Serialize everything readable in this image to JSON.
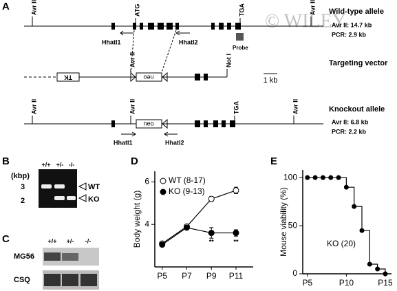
{
  "panel_labels": [
    "A",
    "B",
    "C",
    "D",
    "E"
  ],
  "watermark": "© WILEY",
  "gene_map": {
    "wild_type": {
      "title": "Wild-type allele",
      "avr": "Avr II: 14.7 kb",
      "pcr": "PCR: 2.9 kb",
      "sites": [
        "Avr II",
        "ATG",
        "TGA",
        "Avr II"
      ],
      "primers": [
        "HhatI1",
        "HhatI2"
      ],
      "probe": "Probe"
    },
    "targeting": {
      "title": "Targeting vector",
      "tk": "TK",
      "neo": "neo",
      "sites": [
        "Avr II",
        "Not I"
      ],
      "scale": "1 kb"
    },
    "knockout": {
      "title": "Knockout allele",
      "avr": "Avr II: 6.8 kb",
      "pcr": "PCR: 2.2 kb",
      "sites": [
        "Avr II",
        "Avr II",
        "TGA",
        "Avr II"
      ],
      "neo": "neo",
      "primers": [
        "HhatI1",
        "HhatI2"
      ]
    }
  },
  "genotype_gel": {
    "unit": "(kbp)",
    "lanes": [
      "+/+",
      "+/-",
      "-/-"
    ],
    "size_markers": [
      3,
      2
    ],
    "bands": [
      "WT",
      "KO"
    ]
  },
  "western_blot": {
    "lanes": [
      "+/+",
      "+/-",
      "-/-"
    ],
    "proteins": [
      "MG56",
      "CSQ"
    ]
  },
  "chart_data": [
    {
      "type": "line",
      "ylabel": "Body weight (g)",
      "categories": [
        "P5",
        "P7",
        "P9",
        "P11"
      ],
      "series": [
        {
          "name": "WT (8-17)",
          "color": "#ffffff",
          "values": [
            3.1,
            3.9,
            5.2,
            5.6
          ],
          "errors": [
            0.08,
            0.1,
            0.12,
            0.15
          ]
        },
        {
          "name": "KO (9-13)",
          "color": "#000000",
          "values": [
            3.05,
            3.85,
            3.6,
            3.6
          ],
          "errors": [
            0.05,
            0.08,
            0.25,
            0.15
          ]
        }
      ],
      "annotations": [
        null,
        null,
        "**",
        "**"
      ],
      "ylim": [
        2,
        6.5
      ],
      "yticks": [
        4,
        6
      ],
      "legend": "upper left"
    },
    {
      "type": "line",
      "step": true,
      "ylabel": "Mouse viability (%)",
      "x": [
        5,
        6,
        7,
        8,
        9,
        10,
        11,
        12,
        13,
        14,
        15
      ],
      "series": [
        {
          "name": "KO (20)",
          "color": "#000000",
          "values": [
            100,
            100,
            100,
            100,
            100,
            90,
            70,
            45,
            10,
            5,
            0
          ]
        }
      ],
      "xlim": [
        4.4,
        15.8
      ],
      "xticks": [
        {
          "value": 5,
          "label": "P5"
        },
        {
          "value": 10,
          "label": "P10"
        },
        {
          "value": 15,
          "label": "P15"
        }
      ],
      "ylim": [
        0,
        108
      ],
      "yticks": [
        0,
        50,
        100
      ]
    }
  ]
}
